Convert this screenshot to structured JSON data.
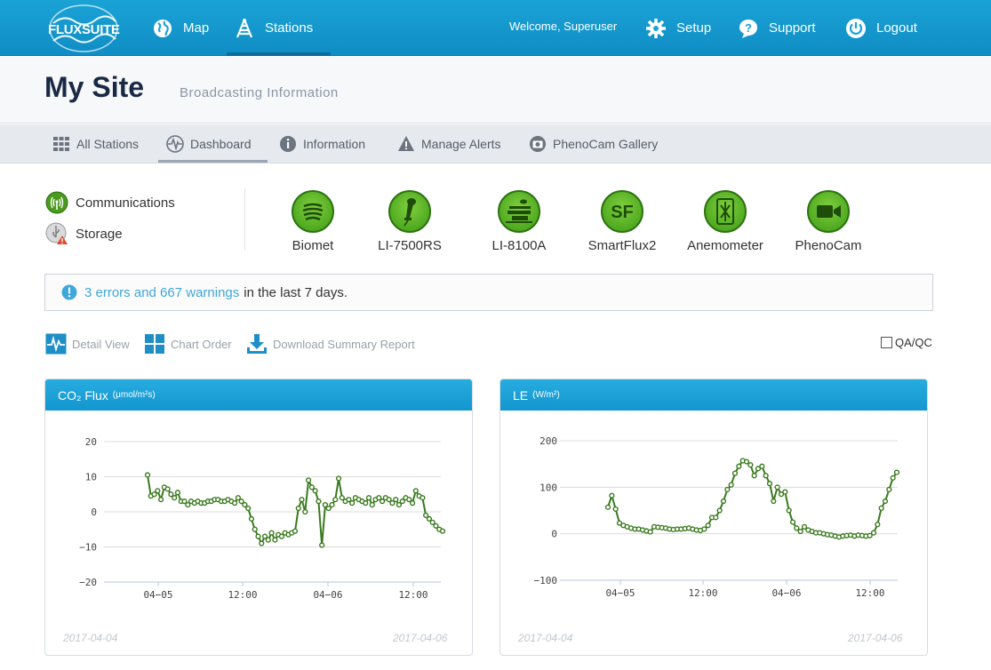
{
  "app": {
    "logo": "FLUXSUITE"
  },
  "topnav": {
    "map": "Map",
    "stations": "Stations",
    "welcome": "Welcome, Superuser",
    "setup": "Setup",
    "support": "Support",
    "logout": "Logout"
  },
  "site": {
    "title": "My Site",
    "subtitle": "Broadcasting Information"
  },
  "subnav": {
    "all_stations": "All Stations",
    "dashboard": "Dashboard",
    "information": "Information",
    "manage_alerts": "Manage Alerts",
    "phenocam_gallery": "PhenoCam Gallery"
  },
  "status": {
    "communications": "Communications",
    "storage": "Storage"
  },
  "devices": [
    "Biomet",
    "LI-7500RS",
    "LI-8100A",
    "SmartFlux2",
    "Anemometer",
    "PhenoCam"
  ],
  "alert": {
    "link": "3 errors and 667 warnings",
    "rest": "in the last 7 days."
  },
  "tools": {
    "detail_view": "Detail View",
    "chart_order": "Chart Order",
    "download": "Download Summary Report",
    "qaqc": "QA/QC"
  },
  "colors": {
    "topbar": "#1aa3d6",
    "series": "#3a7a1e",
    "accent_link": "#3fa7d9"
  },
  "chart_data": [
    {
      "type": "line",
      "title": "CO₂ Flux",
      "unit": "(μmol/m²s)",
      "ylim": [
        -20,
        20
      ],
      "yticks": [
        20,
        10,
        0,
        -10,
        -20
      ],
      "xticks": [
        "04-05",
        "12:00",
        "04-06",
        "12:00"
      ],
      "date_start": "2017-04-04",
      "date_end": "2017-04-06",
      "grid": true,
      "values": [
        10.5,
        4.5,
        5,
        6,
        3.5,
        7,
        6.5,
        5,
        4,
        5.5,
        3,
        3,
        2,
        3,
        2.5,
        3,
        2.5,
        2.5,
        3,
        3,
        3.5,
        3.5,
        3,
        3,
        3.5,
        3,
        2.5,
        4,
        3,
        2,
        1,
        -2,
        -5,
        -7,
        -9,
        -7,
        -8,
        -6,
        -8,
        -6.5,
        -7,
        -6,
        -6.5,
        -6,
        -5.5,
        1,
        3.5,
        0,
        9,
        7,
        6,
        3,
        -9.5,
        2,
        1,
        2,
        3.5,
        9.5,
        4,
        3,
        3.5,
        2.5,
        4,
        3.5,
        3,
        2.5,
        4,
        2,
        3.5,
        4,
        3,
        4,
        3.5,
        2.5,
        3.5,
        2,
        3,
        4,
        3.5,
        2.5,
        6,
        4.5,
        4,
        -1,
        -2,
        -3,
        -4,
        -5,
        -5.5
      ]
    },
    {
      "type": "line",
      "title": "LE",
      "unit": "(W/m²)",
      "ylim": [
        -100,
        200
      ],
      "yticks": [
        200,
        100,
        0,
        -100
      ],
      "xticks": [
        "04-05",
        "12:00",
        "04-06",
        "12:00"
      ],
      "date_start": "2017-04-04",
      "date_end": "2017-04-06",
      "grid": true,
      "values": [
        57,
        82,
        53,
        23,
        18,
        15,
        12,
        10,
        10,
        8,
        6,
        4,
        15,
        14,
        13,
        12,
        10,
        9,
        10,
        10,
        11,
        12,
        10,
        8,
        7,
        10,
        18,
        35,
        35,
        50,
        70,
        95,
        105,
        130,
        145,
        157,
        155,
        148,
        125,
        140,
        145,
        125,
        108,
        70,
        100,
        85,
        90,
        50,
        25,
        12,
        5,
        15,
        8,
        5,
        2,
        2,
        0,
        -2,
        -3,
        -5,
        -7,
        -5,
        -4,
        -3,
        -5,
        -3,
        -4,
        -5,
        -4,
        2,
        20,
        55,
        70,
        95,
        120,
        132
      ]
    }
  ]
}
